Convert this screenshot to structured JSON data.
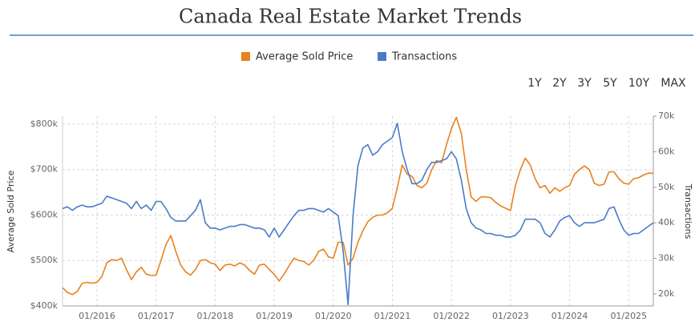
{
  "chart_data": {
    "type": "line",
    "title": "Canada Real Estate Market Trends",
    "range_buttons": [
      "1Y",
      "2Y",
      "3Y",
      "5Y",
      "10Y",
      "MAX"
    ],
    "active_range": "10Y",
    "ylabel": "Average Sold Price",
    "y2label": "Transactions",
    "x": [
      "06/2015",
      "07/2015",
      "08/2015",
      "09/2015",
      "10/2015",
      "11/2015",
      "12/2015",
      "01/2016",
      "02/2016",
      "03/2016",
      "04/2016",
      "05/2016",
      "06/2016",
      "07/2016",
      "08/2016",
      "09/2016",
      "10/2016",
      "11/2016",
      "12/2016",
      "01/2017",
      "02/2017",
      "03/2017",
      "04/2017",
      "05/2017",
      "06/2017",
      "07/2017",
      "08/2017",
      "09/2017",
      "10/2017",
      "11/2017",
      "12/2017",
      "01/2018",
      "02/2018",
      "03/2018",
      "04/2018",
      "05/2018",
      "06/2018",
      "07/2018",
      "08/2018",
      "09/2018",
      "10/2018",
      "11/2018",
      "12/2018",
      "01/2019",
      "02/2019",
      "03/2019",
      "04/2019",
      "05/2019",
      "06/2019",
      "07/2019",
      "08/2019",
      "09/2019",
      "10/2019",
      "11/2019",
      "12/2019",
      "01/2020",
      "02/2020",
      "03/2020",
      "04/2020",
      "05/2020",
      "06/2020",
      "07/2020",
      "08/2020",
      "09/2020",
      "10/2020",
      "11/2020",
      "12/2020",
      "01/2021",
      "02/2021",
      "03/2021",
      "04/2021",
      "05/2021",
      "06/2021",
      "07/2021",
      "08/2021",
      "09/2021",
      "10/2021",
      "11/2021",
      "12/2021",
      "01/2022",
      "02/2022",
      "03/2022",
      "04/2022",
      "05/2022",
      "06/2022",
      "07/2022",
      "08/2022",
      "09/2022",
      "10/2022",
      "11/2022",
      "12/2022",
      "01/2023",
      "02/2023",
      "03/2023",
      "04/2023",
      "05/2023",
      "06/2023",
      "07/2023",
      "08/2023",
      "09/2023",
      "10/2023",
      "11/2023",
      "12/2023",
      "01/2024",
      "02/2024",
      "03/2024",
      "04/2024",
      "05/2024",
      "06/2024",
      "07/2024",
      "08/2024",
      "09/2024",
      "10/2024",
      "11/2024",
      "12/2024",
      "01/2025",
      "02/2025",
      "03/2025",
      "04/2025",
      "05/2025",
      "06/2025"
    ],
    "xlim": [
      "06/2015",
      "06/2025"
    ],
    "xticks": [
      "01/2016",
      "01/2017",
      "01/2018",
      "01/2019",
      "01/2020",
      "01/2021",
      "01/2022",
      "01/2023",
      "01/2024",
      "01/2025"
    ],
    "ylim": [
      400000,
      817500
    ],
    "yticks": [
      {
        "value": 400000,
        "label": "$400k"
      },
      {
        "value": 500000,
        "label": "$500k"
      },
      {
        "value": 600000,
        "label": "$600k"
      },
      {
        "value": 700000,
        "label": "$700k"
      },
      {
        "value": 800000,
        "label": "$800k"
      }
    ],
    "y2lim": [
      16600,
      70000
    ],
    "y2ticks": [
      {
        "value": 20000,
        "label": "20k"
      },
      {
        "value": 30000,
        "label": "30k"
      },
      {
        "value": 40000,
        "label": "40k"
      },
      {
        "value": 50000,
        "label": "50k"
      },
      {
        "value": 60000,
        "label": "60k"
      },
      {
        "value": 70000,
        "label": "70k"
      }
    ],
    "grid": true,
    "series": [
      {
        "name": "Average Sold Price",
        "color": "#e8821e",
        "axis": "y",
        "values": [
          440000,
          430000,
          425000,
          432000,
          450000,
          452000,
          450000,
          452000,
          465000,
          495000,
          502000,
          500000,
          505000,
          480000,
          458000,
          475000,
          485000,
          470000,
          467000,
          468000,
          500000,
          535000,
          555000,
          520000,
          490000,
          475000,
          468000,
          480000,
          500000,
          502000,
          495000,
          492000,
          478000,
          490000,
          492000,
          488000,
          495000,
          490000,
          478000,
          470000,
          490000,
          492000,
          480000,
          470000,
          455000,
          470000,
          488000,
          505000,
          500000,
          498000,
          490000,
          500000,
          520000,
          525000,
          508000,
          505000,
          540000,
          540000,
          490000,
          505000,
          540000,
          565000,
          585000,
          595000,
          600000,
          600000,
          605000,
          615000,
          660000,
          710000,
          690000,
          685000,
          665000,
          660000,
          670000,
          700000,
          720000,
          715000,
          755000,
          790000,
          815000,
          780000,
          700000,
          640000,
          630000,
          640000,
          640000,
          638000,
          628000,
          620000,
          615000,
          610000,
          665000,
          700000,
          725000,
          710000,
          680000,
          660000,
          665000,
          648000,
          660000,
          652000,
          660000,
          665000,
          690000,
          700000,
          708000,
          700000,
          670000,
          665000,
          668000,
          695000,
          695000,
          680000,
          670000,
          668000,
          680000,
          682000,
          688000,
          692000,
          692000
        ]
      },
      {
        "name": "Transactions",
        "color": "#4a7bc8",
        "axis": "y2",
        "values": [
          44000,
          44500,
          43500,
          44500,
          45000,
          44500,
          44500,
          45000,
          45500,
          47500,
          47000,
          46500,
          46000,
          45500,
          44000,
          46000,
          44000,
          45000,
          43500,
          46000,
          46000,
          44000,
          41500,
          40500,
          40500,
          40500,
          42000,
          43500,
          46500,
          40000,
          38500,
          38500,
          38000,
          38500,
          39000,
          39000,
          39500,
          39500,
          39000,
          38500,
          38500,
          38000,
          36000,
          38500,
          36000,
          38000,
          40000,
          42000,
          43500,
          43500,
          44000,
          44000,
          43500,
          43000,
          44000,
          43000,
          42000,
          32000,
          17000,
          42000,
          56000,
          61000,
          62000,
          59000,
          60000,
          62000,
          63000,
          64000,
          68000,
          60000,
          55000,
          51000,
          51000,
          52000,
          55000,
          57000,
          57000,
          57500,
          58000,
          60000,
          58000,
          52000,
          44000,
          40000,
          38500,
          38000,
          37000,
          37000,
          36500,
          36500,
          36000,
          36000,
          36500,
          38000,
          41000,
          41000,
          41000,
          40000,
          37000,
          36000,
          38000,
          40500,
          41500,
          42000,
          40000,
          39000,
          40000,
          40000,
          40000,
          40500,
          41000,
          44000,
          44500,
          41000,
          38000,
          36500,
          37000,
          37000,
          38000,
          39000,
          40000
        ]
      }
    ]
  }
}
